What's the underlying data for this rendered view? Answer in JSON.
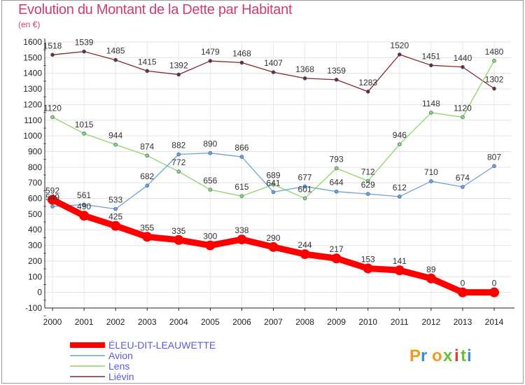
{
  "title": "Evolution du Montant de la Dette par Habitant",
  "unit": "(en €)",
  "brand": "Proxiti",
  "chart_data": {
    "type": "line",
    "x": [
      "2000",
      "2001",
      "2002",
      "2003",
      "2004",
      "2005",
      "2006",
      "2007",
      "2008",
      "2009",
      "2010",
      "2011",
      "2012",
      "2013",
      "2014"
    ],
    "ylim": [
      -100,
      1600
    ],
    "yticks": [
      -100,
      0,
      100,
      200,
      300,
      400,
      500,
      600,
      700,
      800,
      900,
      1000,
      1100,
      1200,
      1300,
      1400,
      1500,
      1600
    ],
    "grid": true,
    "legend_position": "bottom-left",
    "series": [
      {
        "name": "Liévin",
        "color": "#7a2a2a",
        "width": 1.3,
        "marker": 5,
        "values": [
          1518,
          1539,
          1485,
          1415,
          1392,
          1479,
          1468,
          1407,
          1368,
          1359,
          1283,
          1520,
          1451,
          1440,
          1302
        ]
      },
      {
        "name": "Lens",
        "color": "#8fd46a",
        "width": 1.3,
        "marker": 5,
        "values": [
          1120,
          1015,
          944,
          874,
          772,
          656,
          615,
          689,
          601,
          793,
          712,
          946,
          1148,
          1120,
          1480
        ]
      },
      {
        "name": "Avion",
        "color": "#6fa3d6",
        "width": 1.3,
        "marker": 5,
        "values": [
          549,
          561,
          533,
          682,
          882,
          890,
          866,
          641,
          677,
          644,
          629,
          612,
          710,
          674,
          807
        ]
      },
      {
        "name": "ÉLEU-DIT-LEAUWETTE",
        "color": "#ff0000",
        "width": 9,
        "marker": 14,
        "values": [
          592,
          490,
          425,
          355,
          335,
          300,
          338,
          290,
          244,
          217,
          153,
          141,
          89,
          0,
          0
        ]
      }
    ]
  }
}
